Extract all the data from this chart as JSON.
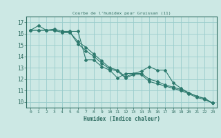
{
  "title": "Courbe de l'humidex pour Gruissan (11)",
  "xlabel": "Humidex (Indice chaleur)",
  "bg_color": "#cce8e4",
  "grid_color": "#99cccc",
  "line_color": "#2d7a6e",
  "text_color": "#2d6b60",
  "xlim": [
    -0.5,
    23.5
  ],
  "ylim": [
    9.5,
    17.5
  ],
  "xticks": [
    0,
    1,
    2,
    3,
    4,
    5,
    6,
    7,
    8,
    9,
    10,
    11,
    12,
    13,
    14,
    15,
    16,
    17,
    18,
    19,
    20,
    21,
    22,
    23
  ],
  "yticks": [
    10,
    11,
    12,
    13,
    14,
    15,
    16,
    17
  ],
  "series1": [
    16.3,
    16.7,
    16.3,
    16.4,
    16.2,
    16.2,
    16.2,
    13.7,
    13.7,
    13.1,
    12.8,
    12.1,
    12.5,
    12.5,
    12.7,
    13.1,
    12.8,
    12.8,
    11.7,
    11.2,
    10.8,
    10.5,
    10.3,
    9.9
  ],
  "series2": [
    16.3,
    16.3,
    16.3,
    16.3,
    16.1,
    16.1,
    15.3,
    14.8,
    14.2,
    13.6,
    13.0,
    12.8,
    12.2,
    12.5,
    12.5,
    12.0,
    11.8,
    11.5,
    11.3,
    11.1,
    10.8,
    10.5,
    10.3,
    9.9
  ],
  "series3": [
    16.3,
    16.3,
    16.3,
    16.3,
    16.1,
    16.1,
    15.1,
    14.5,
    14.0,
    13.4,
    12.9,
    12.7,
    12.1,
    12.4,
    12.4,
    11.8,
    11.6,
    11.4,
    11.2,
    11.0,
    10.7,
    10.4,
    10.2,
    9.9
  ]
}
